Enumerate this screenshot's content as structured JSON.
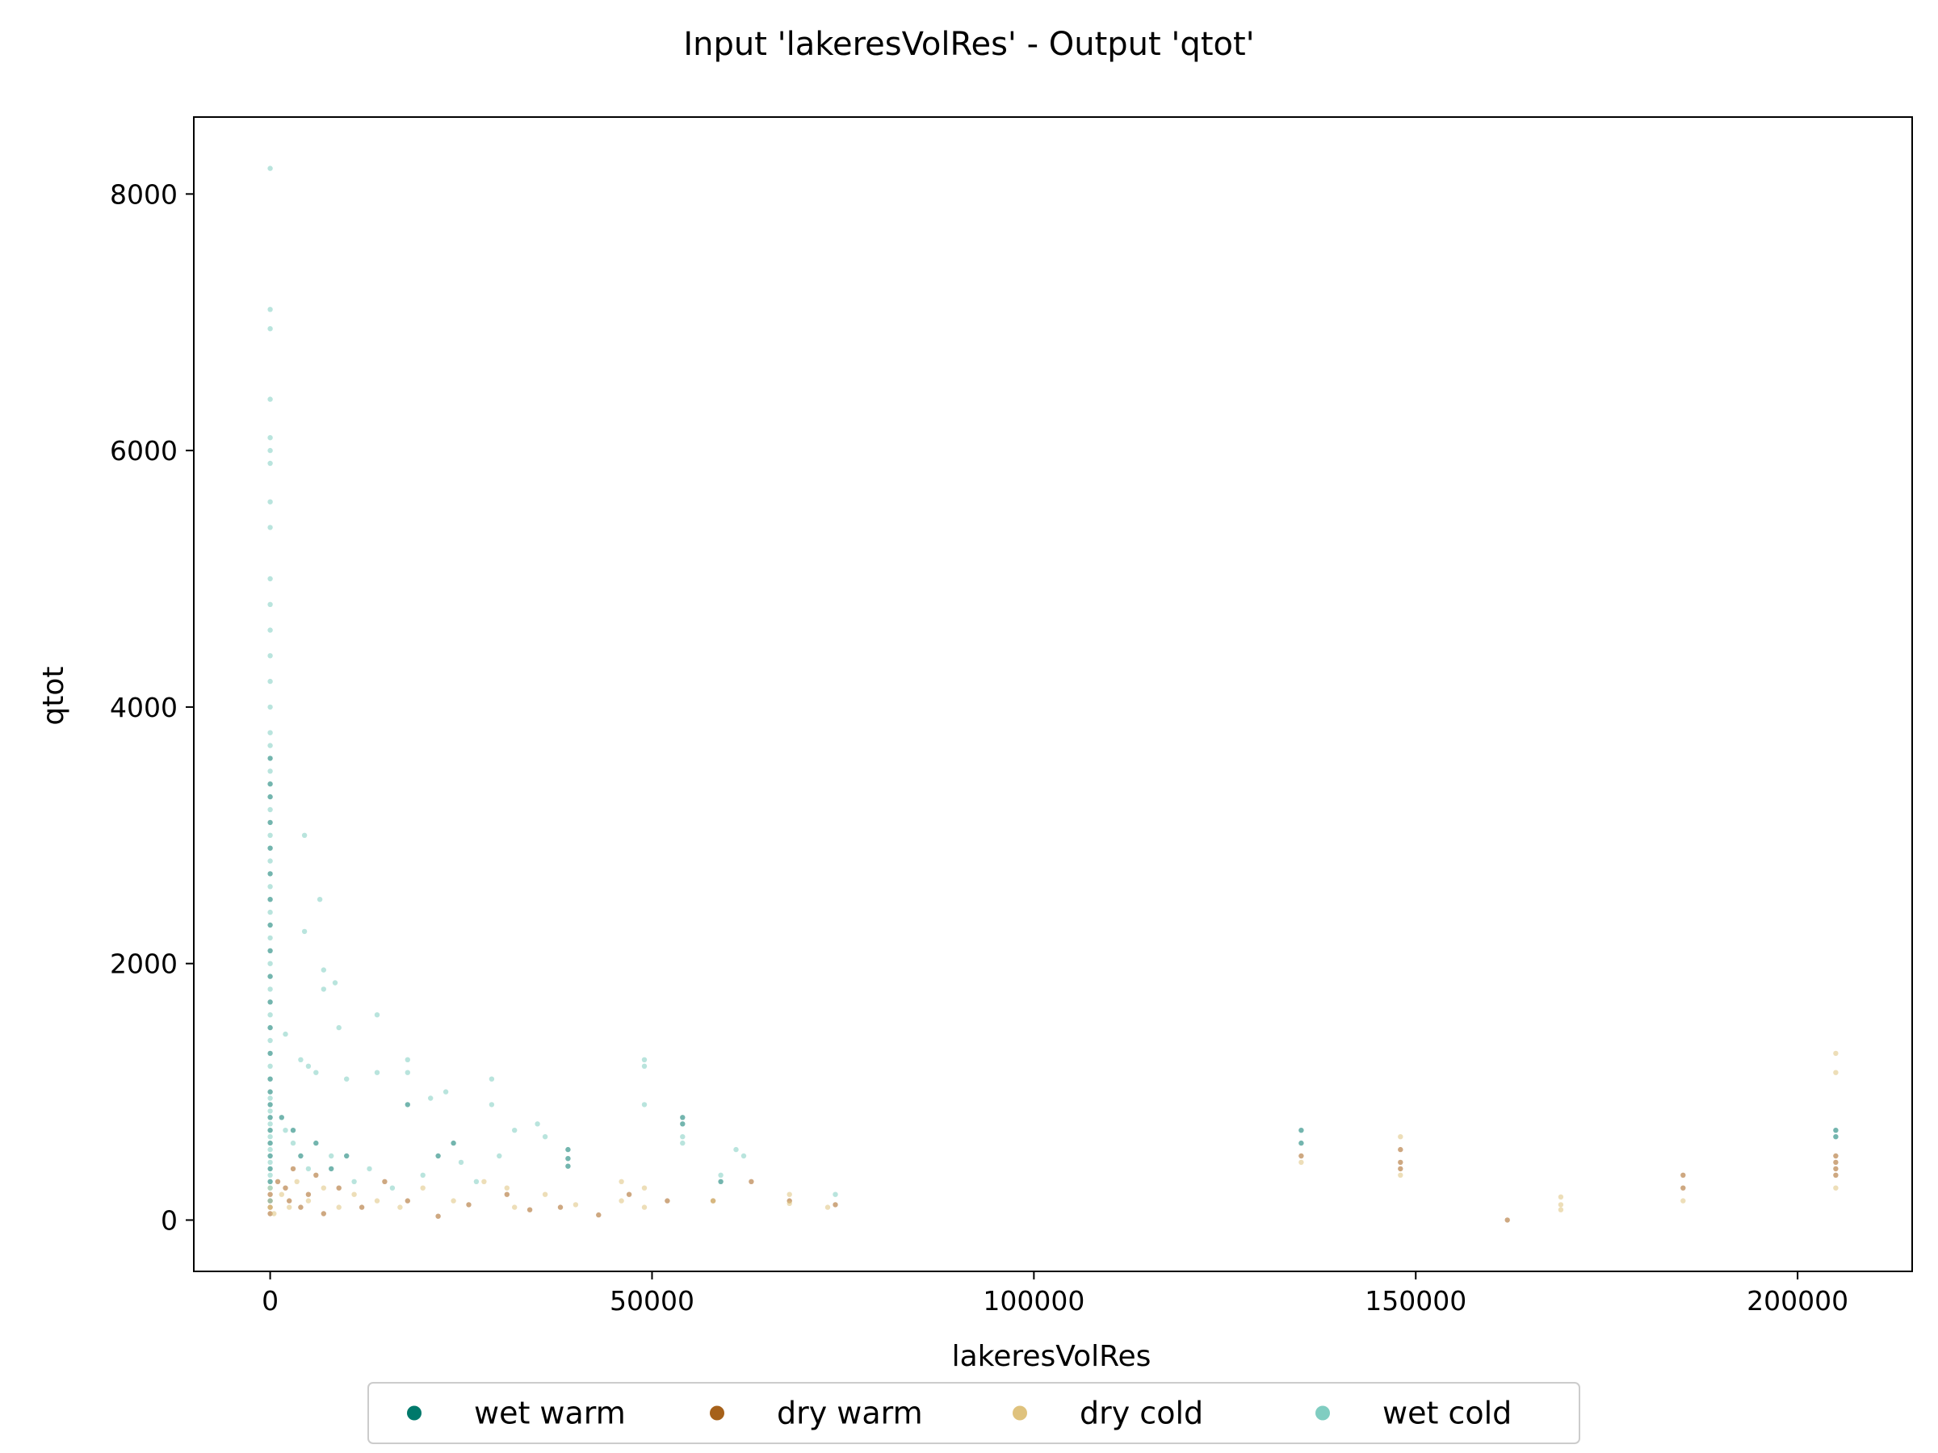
{
  "chart_data": {
    "type": "scatter",
    "title": "Input 'lakeresVolRes' - Output 'qtot'",
    "xlabel": "lakeresVolRes",
    "ylabel": "qtot",
    "xlim": [
      -10000,
      215000
    ],
    "ylim": [
      -400,
      8600
    ],
    "xticks": [
      0,
      50000,
      100000,
      150000,
      200000
    ],
    "yticks": [
      0,
      2000,
      4000,
      6000,
      8000
    ],
    "grid": false,
    "legend_position": "bottom-center",
    "series": [
      {
        "name": "wet warm",
        "color": "#00796b",
        "points": [
          [
            0,
            3600
          ],
          [
            0,
            3400
          ],
          [
            0,
            3300
          ],
          [
            0,
            3100
          ],
          [
            0,
            2900
          ],
          [
            0,
            2700
          ],
          [
            0,
            2500
          ],
          [
            0,
            2300
          ],
          [
            0,
            2100
          ],
          [
            0,
            1900
          ],
          [
            0,
            1700
          ],
          [
            0,
            1500
          ],
          [
            0,
            1300
          ],
          [
            0,
            1100
          ],
          [
            0,
            1000
          ],
          [
            0,
            900
          ],
          [
            0,
            800
          ],
          [
            0,
            700
          ],
          [
            0,
            600
          ],
          [
            0,
            500
          ],
          [
            0,
            400
          ],
          [
            0,
            300
          ],
          [
            1500,
            800
          ],
          [
            3000,
            700
          ],
          [
            4000,
            500
          ],
          [
            6000,
            600
          ],
          [
            8000,
            400
          ],
          [
            10000,
            500
          ],
          [
            18000,
            900
          ],
          [
            22000,
            500
          ],
          [
            24000,
            600
          ],
          [
            39000,
            550
          ],
          [
            39000,
            480
          ],
          [
            39000,
            420
          ],
          [
            54000,
            800
          ],
          [
            54000,
            750
          ],
          [
            59000,
            300
          ],
          [
            135000,
            700
          ],
          [
            135000,
            600
          ],
          [
            205000,
            700
          ],
          [
            205000,
            650
          ]
        ]
      },
      {
        "name": "dry warm",
        "color": "#a6611a",
        "points": [
          [
            0,
            200
          ],
          [
            0,
            150
          ],
          [
            0,
            100
          ],
          [
            0,
            50
          ],
          [
            1000,
            300
          ],
          [
            2000,
            250
          ],
          [
            2500,
            150
          ],
          [
            3000,
            400
          ],
          [
            4000,
            100
          ],
          [
            5000,
            200
          ],
          [
            6000,
            350
          ],
          [
            7000,
            50
          ],
          [
            9000,
            250
          ],
          [
            12000,
            100
          ],
          [
            15000,
            300
          ],
          [
            18000,
            150
          ],
          [
            22000,
            30
          ],
          [
            26000,
            120
          ],
          [
            31000,
            200
          ],
          [
            34000,
            80
          ],
          [
            38000,
            100
          ],
          [
            43000,
            40
          ],
          [
            47000,
            200
          ],
          [
            52000,
            150
          ],
          [
            58000,
            150
          ],
          [
            63000,
            300
          ],
          [
            68000,
            150
          ],
          [
            74000,
            120
          ],
          [
            135000,
            500
          ],
          [
            148000,
            550
          ],
          [
            148000,
            450
          ],
          [
            148000,
            400
          ],
          [
            162000,
            0
          ],
          [
            185000,
            350
          ],
          [
            185000,
            250
          ],
          [
            205000,
            500
          ],
          [
            205000,
            450
          ],
          [
            205000,
            400
          ],
          [
            205000,
            350
          ]
        ]
      },
      {
        "name": "dry cold",
        "color": "#dfc27d",
        "points": [
          [
            0,
            250
          ],
          [
            0,
            100
          ],
          [
            500,
            50
          ],
          [
            1500,
            200
          ],
          [
            2500,
            100
          ],
          [
            3500,
            300
          ],
          [
            5000,
            150
          ],
          [
            7000,
            250
          ],
          [
            9000,
            100
          ],
          [
            11000,
            200
          ],
          [
            14000,
            150
          ],
          [
            17000,
            100
          ],
          [
            20000,
            250
          ],
          [
            24000,
            150
          ],
          [
            28000,
            300
          ],
          [
            31000,
            250
          ],
          [
            32000,
            100
          ],
          [
            36000,
            200
          ],
          [
            40000,
            120
          ],
          [
            46000,
            300
          ],
          [
            46000,
            150
          ],
          [
            49000,
            250
          ],
          [
            49000,
            100
          ],
          [
            58000,
            150
          ],
          [
            68000,
            200
          ],
          [
            68000,
            130
          ],
          [
            73000,
            100
          ],
          [
            135000,
            450
          ],
          [
            148000,
            650
          ],
          [
            148000,
            350
          ],
          [
            169000,
            180
          ],
          [
            169000,
            120
          ],
          [
            169000,
            80
          ],
          [
            185000,
            150
          ],
          [
            205000,
            1300
          ],
          [
            205000,
            1150
          ],
          [
            205000,
            250
          ]
        ]
      },
      {
        "name": "wet cold",
        "color": "#80cdc1",
        "points": [
          [
            0,
            8200
          ],
          [
            0,
            7100
          ],
          [
            0,
            6950
          ],
          [
            0,
            6400
          ],
          [
            0,
            6100
          ],
          [
            0,
            6000
          ],
          [
            0,
            5900
          ],
          [
            0,
            5600
          ],
          [
            0,
            5400
          ],
          [
            0,
            5000
          ],
          [
            0,
            4800
          ],
          [
            0,
            4600
          ],
          [
            0,
            4400
          ],
          [
            0,
            4200
          ],
          [
            0,
            4000
          ],
          [
            0,
            3800
          ],
          [
            0,
            3700
          ],
          [
            0,
            3500
          ],
          [
            0,
            3200
          ],
          [
            0,
            3000
          ],
          [
            0,
            2800
          ],
          [
            0,
            2600
          ],
          [
            0,
            2400
          ],
          [
            0,
            2200
          ],
          [
            0,
            2000
          ],
          [
            0,
            1800
          ],
          [
            0,
            1600
          ],
          [
            0,
            1400
          ],
          [
            0,
            1200
          ],
          [
            0,
            950
          ],
          [
            0,
            850
          ],
          [
            0,
            750
          ],
          [
            0,
            650
          ],
          [
            0,
            550
          ],
          [
            0,
            450
          ],
          [
            0,
            350
          ],
          [
            0,
            250
          ],
          [
            0,
            150
          ],
          [
            4500,
            3000
          ],
          [
            4500,
            2250
          ],
          [
            6500,
            2500
          ],
          [
            7000,
            1950
          ],
          [
            8500,
            1850
          ],
          [
            7000,
            1800
          ],
          [
            14000,
            1600
          ],
          [
            9000,
            1500
          ],
          [
            2000,
            1450
          ],
          [
            4000,
            1250
          ],
          [
            5000,
            1200
          ],
          [
            6000,
            1150
          ],
          [
            10000,
            1100
          ],
          [
            14000,
            1150
          ],
          [
            18000,
            1250
          ],
          [
            18000,
            1150
          ],
          [
            21000,
            950
          ],
          [
            23000,
            1000
          ],
          [
            29000,
            1100
          ],
          [
            29000,
            900
          ],
          [
            32000,
            700
          ],
          [
            35000,
            750
          ],
          [
            49000,
            1250
          ],
          [
            49000,
            1200
          ],
          [
            49000,
            900
          ],
          [
            54000,
            650
          ],
          [
            54000,
            600
          ],
          [
            59000,
            350
          ],
          [
            61000,
            550
          ],
          [
            62000,
            500
          ],
          [
            74000,
            200
          ],
          [
            2000,
            700
          ],
          [
            3000,
            600
          ],
          [
            5000,
            400
          ],
          [
            8000,
            500
          ],
          [
            11000,
            300
          ],
          [
            13000,
            400
          ],
          [
            16000,
            250
          ],
          [
            20000,
            350
          ],
          [
            25000,
            450
          ],
          [
            27000,
            300
          ],
          [
            30000,
            500
          ],
          [
            36000,
            650
          ]
        ]
      }
    ]
  }
}
